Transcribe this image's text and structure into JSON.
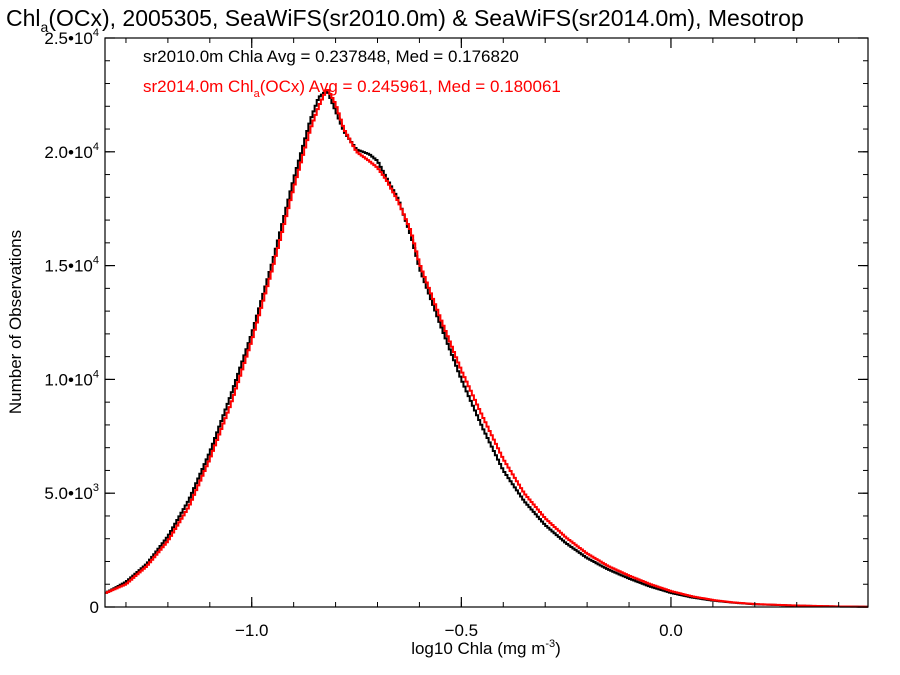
{
  "title": {
    "prefix": "Chl",
    "subscript": "a",
    "rest": "(OCx), 2005305, SeaWiFS(sr2010.0m) & SeaWiFS(sr2014.0m), Mesotrop"
  },
  "colors": {
    "series_1": "#000000",
    "series_2": "#ff0000",
    "background": "#ffffff",
    "axes": "#000000"
  },
  "stats": {
    "line_1": "sr2010.0m Chla Avg = 0.237848, Med = 0.176820",
    "line_2_prefix": "sr2014.0m Chl",
    "line_2_subscript": "a",
    "line_2_rest": "(OCx) Avg = 0.245961, Med = 0.180061"
  },
  "chart_data": {
    "type": "line",
    "style": "step histogram",
    "xlabel_prefix": "log10 Chla (mg m",
    "xlabel_superscript": "-3",
    "xlabel_suffix": ")",
    "ylabel": "Number of Observations",
    "xlim": [
      -1.35,
      0.47
    ],
    "ylim": [
      0,
      25000
    ],
    "x_ticks": [
      {
        "value": -1.0,
        "label": "−1.0"
      },
      {
        "value": -0.5,
        "label": "−0.5"
      },
      {
        "value": 0.0,
        "label": "0.0"
      }
    ],
    "x_minor_step": 0.1,
    "y_ticks": [
      {
        "value": 0,
        "mantissa": "0",
        "exponent": ""
      },
      {
        "value": 5000,
        "mantissa": "5.0•10",
        "exponent": "3"
      },
      {
        "value": 10000,
        "mantissa": "1.0•10",
        "exponent": "4"
      },
      {
        "value": 15000,
        "mantissa": "1.5•10",
        "exponent": "4"
      },
      {
        "value": 20000,
        "mantissa": "2.0•10",
        "exponent": "4"
      },
      {
        "value": 25000,
        "mantissa": "2.5•10",
        "exponent": "4"
      }
    ],
    "y_minor_step": 1000,
    "grid": false,
    "legend": "top-left text annotations",
    "series": [
      {
        "name": "sr2010.0m Chla",
        "x": [
          -1.35,
          -1.3,
          -1.25,
          -1.2,
          -1.15,
          -1.1,
          -1.05,
          -1.0,
          -0.95,
          -0.9,
          -0.86,
          -0.84,
          -0.82,
          -0.8,
          -0.78,
          -0.75,
          -0.72,
          -0.7,
          -0.68,
          -0.65,
          -0.62,
          -0.6,
          -0.55,
          -0.5,
          -0.45,
          -0.4,
          -0.35,
          -0.3,
          -0.25,
          -0.2,
          -0.15,
          -0.1,
          -0.05,
          0.0,
          0.05,
          0.1,
          0.15,
          0.2,
          0.3,
          0.4,
          0.47
        ],
        "y": [
          600,
          1100,
          1900,
          3100,
          4700,
          6800,
          9300,
          12000,
          15200,
          18800,
          21400,
          22400,
          22700,
          21800,
          20900,
          20100,
          19900,
          19600,
          18900,
          17900,
          16300,
          14900,
          12400,
          10000,
          7900,
          6000,
          4650,
          3600,
          2800,
          2150,
          1650,
          1250,
          900,
          620,
          420,
          280,
          190,
          120,
          60,
          20,
          10
        ]
      },
      {
        "name": "sr2014.0m Chla(OCx)",
        "x": [
          -1.35,
          -1.3,
          -1.25,
          -1.2,
          -1.15,
          -1.1,
          -1.05,
          -1.0,
          -0.95,
          -0.9,
          -0.86,
          -0.84,
          -0.82,
          -0.8,
          -0.78,
          -0.75,
          -0.72,
          -0.7,
          -0.68,
          -0.65,
          -0.62,
          -0.6,
          -0.55,
          -0.5,
          -0.45,
          -0.4,
          -0.35,
          -0.3,
          -0.25,
          -0.2,
          -0.15,
          -0.1,
          -0.05,
          0.0,
          0.05,
          0.1,
          0.15,
          0.2,
          0.3,
          0.4,
          0.47
        ],
        "y": [
          600,
          1000,
          1800,
          2900,
          4400,
          6500,
          8900,
          11700,
          14900,
          18400,
          21000,
          22000,
          22800,
          22100,
          21000,
          20000,
          19600,
          19300,
          18800,
          17800,
          16500,
          15100,
          12700,
          10400,
          8400,
          6500,
          5000,
          3900,
          3050,
          2350,
          1800,
          1380,
          1010,
          700,
          470,
          310,
          200,
          130,
          65,
          25,
          12
        ]
      }
    ]
  }
}
